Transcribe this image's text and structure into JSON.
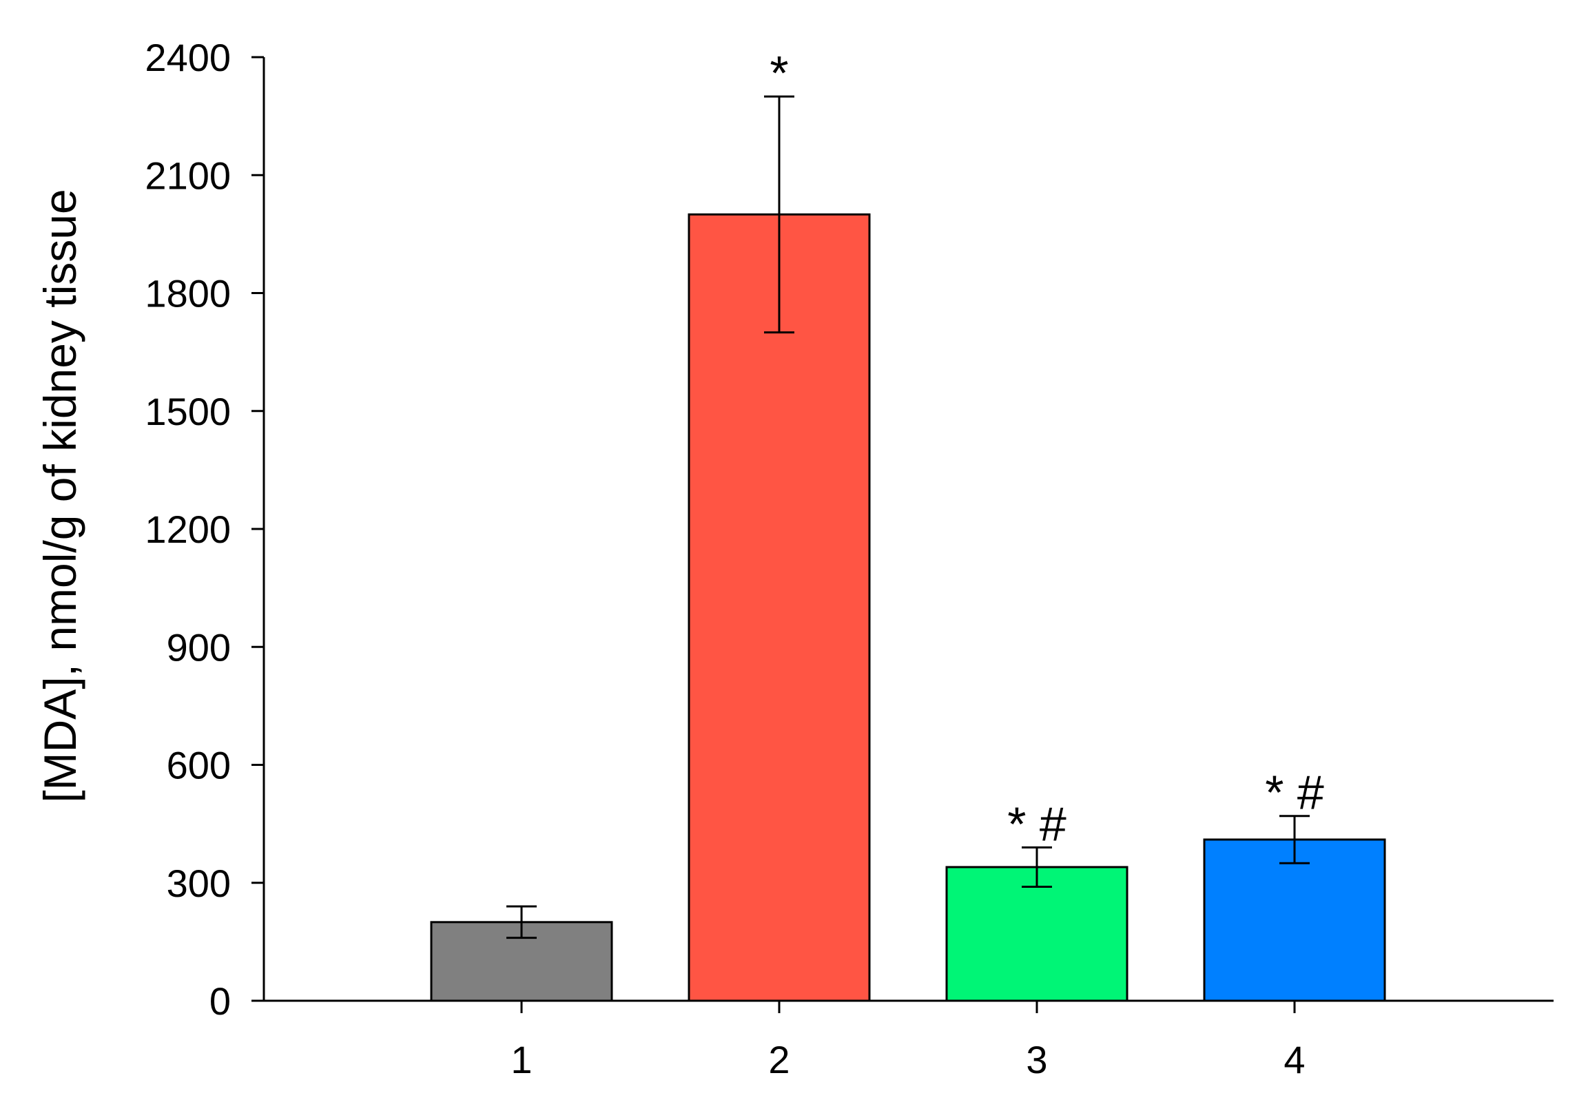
{
  "chart_data": {
    "type": "bar",
    "title": "",
    "xlabel": "",
    "ylabel": "[MDA], nmol/g of kidney tissue",
    "categories": [
      "1",
      "2",
      "3",
      "4"
    ],
    "values": [
      200,
      2000,
      340,
      410
    ],
    "errors": [
      40,
      300,
      50,
      60
    ],
    "annotations": [
      "",
      "*",
      "*#",
      "*#"
    ],
    "colors": [
      "#808080",
      "#FF5544",
      "#00F576",
      "#0080FF"
    ],
    "ylim": [
      0,
      2400
    ],
    "yticks": [
      "0",
      "300",
      "600",
      "900",
      "1200",
      "1500",
      "1800",
      "2100",
      "2400"
    ],
    "grid": false,
    "legend": "none"
  }
}
